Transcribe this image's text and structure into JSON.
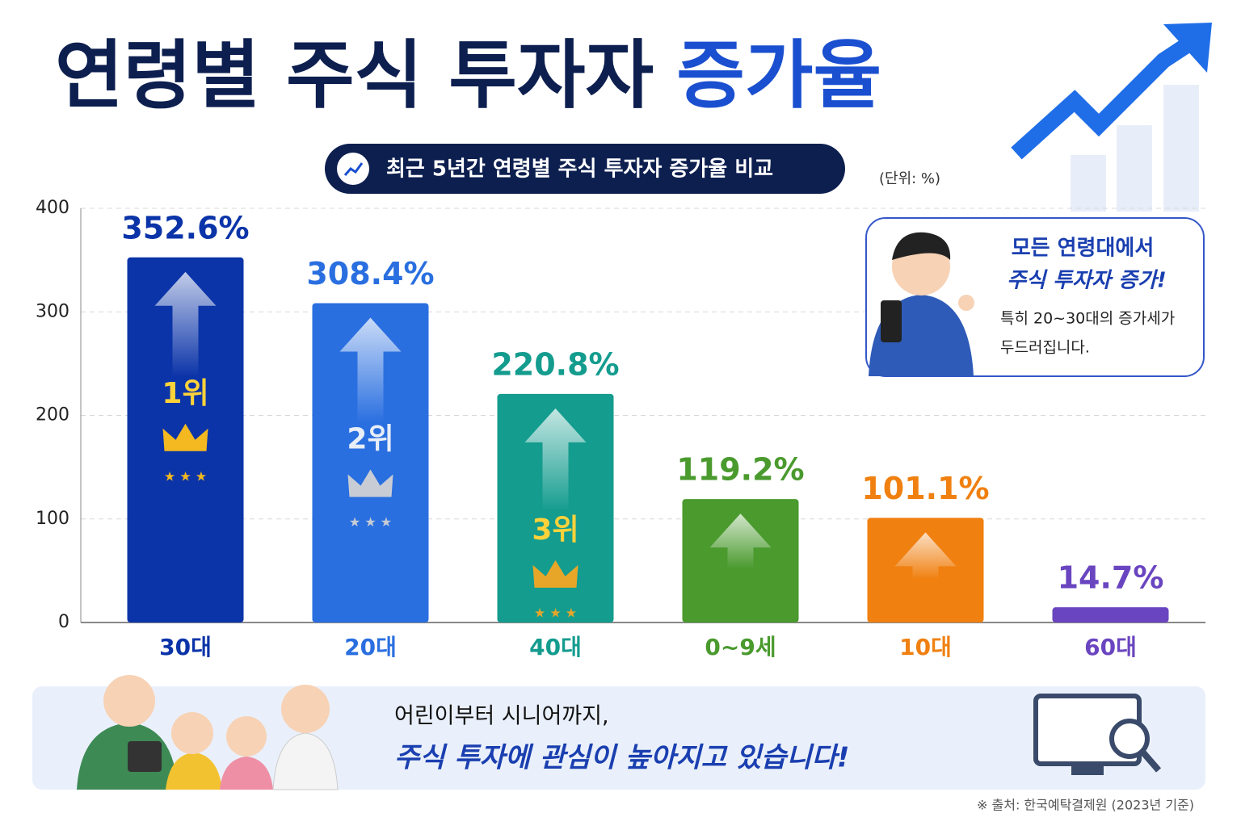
{
  "chart_data": {
    "type": "bar",
    "title_main": "연령별 주식 투자자",
    "title_highlight": "증가율",
    "subtitle": "최근 5년간 연령별 주식 투자자 증가율 비교",
    "unit": "(단위: %)",
    "categories": [
      "30대",
      "20대",
      "40대",
      "0~9세",
      "10대",
      "60대"
    ],
    "values": [
      352.6,
      308.4,
      220.8,
      119.2,
      101.1,
      14.7
    ],
    "value_labels": [
      "352.6%",
      "308.4%",
      "220.8%",
      "119.2%",
      "101.1%",
      "14.7%"
    ],
    "colors": [
      "#0b34a8",
      "#2a6fe0",
      "#149c8e",
      "#4a9a2e",
      "#f08010",
      "#6a45c0"
    ],
    "ranks": [
      "1위",
      "2위",
      "3위"
    ],
    "ylim": [
      0,
      400
    ],
    "yticks": [
      0,
      100,
      200,
      300,
      400
    ],
    "grid": true,
    "callout": [
      "모든 연령대에서",
      "주식 투자자 증가!",
      "특히 20~30대의 증가세가",
      "두드러집니다."
    ],
    "banner": [
      "어린이부터 시니어까지,",
      "주식 투자에 관심이 높아지고 있습니다!"
    ],
    "source": "※ 출처: 한국예탁결제원 (2023년 기준)"
  }
}
